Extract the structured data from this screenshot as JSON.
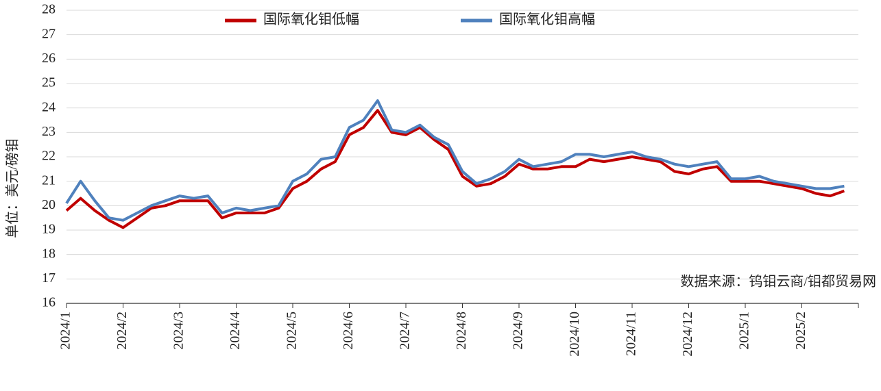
{
  "chart_data": {
    "type": "line",
    "y_label": "单位：美元/磅钼",
    "annotation": "数据来源：钨钼云商/钼都贸易网",
    "categories": [
      "2024/1",
      null,
      null,
      null,
      "2024/2",
      null,
      null,
      null,
      "2024/3",
      null,
      null,
      null,
      "2024/4",
      null,
      null,
      null,
      "2024/5",
      null,
      null,
      null,
      "2024/6",
      null,
      null,
      null,
      "2024/7",
      null,
      null,
      null,
      "2024/8",
      null,
      null,
      null,
      "2024/9",
      null,
      null,
      null,
      "2024/10",
      null,
      null,
      null,
      "2024/11",
      null,
      null,
      null,
      "2024/12",
      null,
      null,
      null,
      "2025/1",
      null,
      null,
      null,
      "2025/2",
      null,
      null,
      null
    ],
    "series": [
      {
        "name": "国际氧化钼低幅",
        "color": "#c00000",
        "values": [
          19.8,
          20.3,
          19.8,
          19.4,
          19.1,
          19.5,
          19.9,
          20.0,
          20.2,
          20.2,
          20.2,
          19.5,
          19.7,
          19.7,
          19.7,
          19.9,
          20.7,
          21.0,
          21.5,
          21.8,
          22.9,
          23.2,
          23.9,
          23.0,
          22.9,
          23.2,
          22.7,
          22.3,
          21.2,
          20.8,
          20.9,
          21.2,
          21.7,
          21.5,
          21.5,
          21.6,
          21.6,
          21.9,
          21.8,
          21.9,
          22.0,
          21.9,
          21.8,
          21.4,
          21.3,
          21.5,
          21.6,
          21.0,
          21.0,
          21.0,
          20.9,
          20.8,
          20.7,
          20.5,
          20.4,
          20.6
        ]
      },
      {
        "name": "国际氧化钼高幅",
        "color": "#4f81bd",
        "values": [
          20.1,
          21.0,
          20.2,
          19.5,
          19.4,
          19.7,
          20.0,
          20.2,
          20.4,
          20.3,
          20.4,
          19.7,
          19.9,
          19.8,
          19.9,
          20.0,
          21.0,
          21.3,
          21.9,
          22.0,
          23.2,
          23.5,
          24.3,
          23.1,
          23.0,
          23.3,
          22.8,
          22.5,
          21.4,
          20.9,
          21.1,
          21.4,
          21.9,
          21.6,
          21.7,
          21.8,
          22.1,
          22.1,
          22.0,
          22.1,
          22.2,
          22.0,
          21.9,
          21.7,
          21.6,
          21.7,
          21.8,
          21.1,
          21.1,
          21.2,
          21.0,
          20.9,
          20.8,
          20.7,
          20.7,
          20.8
        ]
      }
    ],
    "ylim": [
      16,
      28
    ],
    "yticks": [
      16,
      17,
      18,
      19,
      20,
      21,
      22,
      23,
      24,
      25,
      26,
      27,
      28
    ],
    "grid": true,
    "legend": "top"
  }
}
